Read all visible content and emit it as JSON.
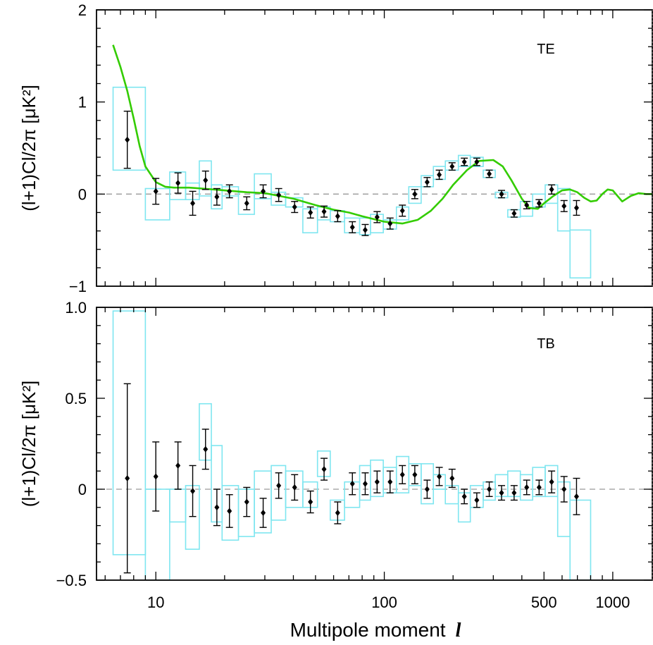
{
  "colors": {
    "model_curve": "#33cc00",
    "box_outline": "#7fe6f0",
    "point": "#000000",
    "zero_line": "#999999",
    "frame": "#000000"
  },
  "x_axis": {
    "label_text": "Multipole moment",
    "label_symbol": "l",
    "scale": "log",
    "range": [
      5.5,
      1500
    ],
    "tick_labels": [
      {
        "value": 10,
        "label": "10"
      },
      {
        "value": 100,
        "label": "100"
      },
      {
        "value": 500,
        "label": "500"
      },
      {
        "value": 1000,
        "label": "1000"
      }
    ]
  },
  "chart_data": [
    {
      "type": "scatter",
      "panel_label": "TE",
      "ylabel": "(l+1)Cl/2π [μK²]",
      "ylim": [
        -1,
        2
      ],
      "y_tick_labels": [
        {
          "value": 2,
          "label": "2"
        },
        {
          "value": 1,
          "label": "1"
        },
        {
          "value": 0,
          "label": "0"
        },
        {
          "value": -1,
          "label": "−1"
        }
      ],
      "zero_line": true,
      "model_curve": {
        "l": [
          6.5,
          7,
          7.5,
          8,
          8.5,
          9,
          10,
          11,
          12,
          14,
          16,
          20,
          25,
          30,
          40,
          50,
          60,
          70,
          80,
          100,
          120,
          140,
          160,
          180,
          200,
          230,
          260,
          300,
          330,
          360,
          400,
          430,
          470,
          500,
          550,
          600,
          650,
          700,
          750,
          800,
          850,
          900,
          950,
          1000,
          1100,
          1200,
          1300,
          1400,
          1500
        ],
        "y": [
          1.62,
          1.38,
          1.12,
          0.82,
          0.52,
          0.3,
          0.13,
          0.08,
          0.07,
          0.07,
          0.06,
          0.04,
          0.02,
          0.01,
          -0.05,
          -0.12,
          -0.17,
          -0.2,
          -0.24,
          -0.3,
          -0.32,
          -0.28,
          -0.18,
          -0.05,
          0.1,
          0.26,
          0.36,
          0.37,
          0.3,
          0.15,
          -0.05,
          -0.15,
          -0.16,
          -0.1,
          -0.02,
          0.04,
          0.05,
          0.02,
          -0.04,
          -0.08,
          -0.07,
          0.0,
          0.05,
          0.04,
          -0.08,
          -0.02,
          0.01,
          0.0,
          0.0
        ]
      },
      "points": [
        {
          "l": 7.5,
          "y": 0.59,
          "err": 0.31,
          "box_lo": 6.5,
          "box_hi": 9.0,
          "box_y0": 0.26,
          "box_y1": 1.16
        },
        {
          "l": 10.0,
          "y": 0.03,
          "err": 0.14,
          "box_lo": 9.0,
          "box_hi": 11.5,
          "box_y0": -0.28,
          "box_y1": 0.06
        },
        {
          "l": 12.5,
          "y": 0.12,
          "err": 0.11,
          "box_lo": 11.5,
          "box_hi": 13.5,
          "box_y0": -0.06,
          "box_y1": 0.24
        },
        {
          "l": 14.5,
          "y": -0.1,
          "err": 0.13,
          "box_lo": 13.5,
          "box_hi": 15.5,
          "box_y0": -0.06,
          "box_y1": 0.12
        },
        {
          "l": 16.5,
          "y": 0.15,
          "err": 0.1,
          "box_lo": 15.5,
          "box_hi": 17.5,
          "box_y0": -0.02,
          "box_y1": 0.36
        },
        {
          "l": 18.5,
          "y": -0.03,
          "err": 0.09,
          "box_lo": 17.5,
          "box_hi": 19.5,
          "box_y0": -0.16,
          "box_y1": 0.1
        },
        {
          "l": 21.0,
          "y": 0.03,
          "err": 0.07,
          "box_lo": 19.5,
          "box_hi": 23.0,
          "box_y0": -0.02,
          "box_y1": 0.08
        },
        {
          "l": 25.0,
          "y": -0.1,
          "err": 0.07,
          "box_lo": 23.0,
          "box_hi": 27.0,
          "box_y0": -0.22,
          "box_y1": 0.02
        },
        {
          "l": 29.5,
          "y": 0.03,
          "err": 0.07,
          "box_lo": 27.0,
          "box_hi": 32.0,
          "box_y0": -0.05,
          "box_y1": 0.22
        },
        {
          "l": 34.5,
          "y": -0.01,
          "err": 0.07,
          "box_lo": 32.0,
          "box_hi": 37.0,
          "box_y0": -0.12,
          "box_y1": 0.02
        },
        {
          "l": 40.5,
          "y": -0.14,
          "err": 0.06,
          "box_lo": 37.0,
          "box_hi": 44.0,
          "box_y0": -0.14,
          "box_y1": -0.04
        },
        {
          "l": 47.5,
          "y": -0.2,
          "err": 0.06,
          "box_lo": 44.0,
          "box_hi": 51.0,
          "box_y0": -0.42,
          "box_y1": -0.16
        },
        {
          "l": 54.5,
          "y": -0.19,
          "err": 0.06,
          "box_lo": 51.0,
          "box_hi": 58.0,
          "box_y0": -0.28,
          "box_y1": -0.14
        },
        {
          "l": 62.5,
          "y": -0.24,
          "err": 0.06,
          "box_lo": 58.0,
          "box_hi": 67.0,
          "box_y0": -0.3,
          "box_y1": -0.18
        },
        {
          "l": 72.5,
          "y": -0.36,
          "err": 0.06,
          "box_lo": 67.0,
          "box_hi": 78.0,
          "box_y0": -0.42,
          "box_y1": -0.26
        },
        {
          "l": 82.5,
          "y": -0.39,
          "err": 0.06,
          "box_lo": 78.0,
          "box_hi": 87.0,
          "box_y0": -0.44,
          "box_y1": -0.26
        },
        {
          "l": 93.0,
          "y": -0.25,
          "err": 0.06,
          "box_lo": 87.0,
          "box_hi": 99.0,
          "box_y0": -0.42,
          "box_y1": -0.22
        },
        {
          "l": 106.0,
          "y": -0.32,
          "err": 0.06,
          "box_lo": 99.0,
          "box_hi": 113.0,
          "box_y0": -0.38,
          "box_y1": -0.28
        },
        {
          "l": 120.0,
          "y": -0.18,
          "err": 0.06,
          "box_lo": 113.0,
          "box_hi": 128.0,
          "box_y0": -0.28,
          "box_y1": -0.14
        },
        {
          "l": 136.0,
          "y": 0.0,
          "err": 0.05,
          "box_lo": 128.0,
          "box_hi": 145.0,
          "box_y0": -0.1,
          "box_y1": 0.08
        },
        {
          "l": 154.0,
          "y": 0.13,
          "err": 0.05,
          "box_lo": 145.0,
          "box_hi": 164.0,
          "box_y0": 0.08,
          "box_y1": 0.2
        },
        {
          "l": 174.0,
          "y": 0.21,
          "err": 0.05,
          "box_lo": 164.0,
          "box_hi": 185.0,
          "box_y0": 0.16,
          "box_y1": 0.3
        },
        {
          "l": 198.0,
          "y": 0.3,
          "err": 0.04,
          "box_lo": 185.0,
          "box_hi": 211.0,
          "box_y0": 0.26,
          "box_y1": 0.36
        },
        {
          "l": 224.0,
          "y": 0.35,
          "err": 0.04,
          "box_lo": 211.0,
          "box_hi": 238.0,
          "box_y0": 0.3,
          "box_y1": 0.42
        },
        {
          "l": 254.0,
          "y": 0.35,
          "err": 0.04,
          "box_lo": 238.0,
          "box_hi": 271.0,
          "box_y0": 0.3,
          "box_y1": 0.4
        },
        {
          "l": 288.0,
          "y": 0.22,
          "err": 0.04,
          "box_lo": 271.0,
          "box_hi": 306.0,
          "box_y0": 0.18,
          "box_y1": 0.26
        },
        {
          "l": 326.0,
          "y": 0.0,
          "err": 0.04,
          "box_lo": 306.0,
          "box_hi": 347.0,
          "box_y0": -0.04,
          "box_y1": 0.02
        },
        {
          "l": 370.0,
          "y": -0.21,
          "err": 0.04,
          "box_lo": 347.0,
          "box_hi": 394.0,
          "box_y0": -0.25,
          "box_y1": -0.17
        },
        {
          "l": 420.0,
          "y": -0.12,
          "err": 0.04,
          "box_lo": 394.0,
          "box_hi": 446.0,
          "box_y0": -0.24,
          "box_y1": -0.08
        },
        {
          "l": 476.0,
          "y": -0.1,
          "err": 0.04,
          "box_lo": 446.0,
          "box_hi": 506.0,
          "box_y0": -0.14,
          "box_y1": 0.0
        },
        {
          "l": 540.0,
          "y": 0.05,
          "err": 0.05,
          "box_lo": 506.0,
          "box_hi": 574.0,
          "box_y0": -0.1,
          "box_y1": 0.1
        },
        {
          "l": 612.0,
          "y": -0.13,
          "err": 0.06,
          "box_lo": 574.0,
          "box_hi": 650.0,
          "box_y0": -0.4,
          "box_y1": 0.06
        },
        {
          "l": 694.0,
          "y": -0.15,
          "err": 0.08,
          "box_lo": 650.0,
          "box_hi": 800.0,
          "box_y0": -0.91,
          "box_y1": -0.39
        }
      ]
    },
    {
      "type": "scatter",
      "panel_label": "TB",
      "ylabel": "(l+1)Cl/2π [μK²]",
      "ylim": [
        -0.5,
        1.0
      ],
      "y_tick_labels": [
        {
          "value": 1.0,
          "label": "1.0"
        },
        {
          "value": 0.5,
          "label": "0.5"
        },
        {
          "value": 0,
          "label": "0"
        },
        {
          "value": -0.5,
          "label": "−0.5"
        }
      ],
      "zero_line": true,
      "points": [
        {
          "l": 7.5,
          "y": 0.06,
          "err": 0.52,
          "box_lo": 6.5,
          "box_hi": 9.0,
          "box_y0": -0.36,
          "box_y1": 0.98
        },
        {
          "l": 10.0,
          "y": 0.07,
          "err": 0.19,
          "box_lo": 9.0,
          "box_hi": 11.5,
          "box_y0": -0.5,
          "box_y1": 0.0
        },
        {
          "l": 12.5,
          "y": 0.13,
          "err": 0.13,
          "box_lo": 11.5,
          "box_hi": 13.5,
          "box_y0": -0.18,
          "box_y1": 0.0
        },
        {
          "l": 14.5,
          "y": -0.01,
          "err": 0.14,
          "box_lo": 13.5,
          "box_hi": 15.5,
          "box_y0": -0.33,
          "box_y1": 0.02
        },
        {
          "l": 16.5,
          "y": 0.22,
          "err": 0.11,
          "box_lo": 15.5,
          "box_hi": 17.5,
          "box_y0": 0.16,
          "box_y1": 0.47
        },
        {
          "l": 18.5,
          "y": -0.1,
          "err": 0.1,
          "box_lo": 17.5,
          "box_hi": 19.5,
          "box_y0": -0.18,
          "box_y1": 0.24
        },
        {
          "l": 21.0,
          "y": -0.12,
          "err": 0.09,
          "box_lo": 19.5,
          "box_hi": 23.0,
          "box_y0": -0.28,
          "box_y1": 0.02
        },
        {
          "l": 25.0,
          "y": -0.07,
          "err": 0.08,
          "box_lo": 23.0,
          "box_hi": 27.0,
          "box_y0": -0.26,
          "box_y1": 0.0
        },
        {
          "l": 29.5,
          "y": -0.13,
          "err": 0.08,
          "box_lo": 27.0,
          "box_hi": 32.0,
          "box_y0": -0.24,
          "box_y1": 0.1
        },
        {
          "l": 34.5,
          "y": 0.02,
          "err": 0.07,
          "box_lo": 32.0,
          "box_hi": 37.0,
          "box_y0": -0.17,
          "box_y1": 0.13
        },
        {
          "l": 40.5,
          "y": 0.01,
          "err": 0.07,
          "box_lo": 37.0,
          "box_hi": 44.0,
          "box_y0": -0.1,
          "box_y1": 0.1
        },
        {
          "l": 47.5,
          "y": -0.07,
          "err": 0.06,
          "box_lo": 44.0,
          "box_hi": 51.0,
          "box_y0": -0.1,
          "box_y1": 0.04
        },
        {
          "l": 54.5,
          "y": 0.11,
          "err": 0.06,
          "box_lo": 51.0,
          "box_hi": 58.0,
          "box_y0": 0.07,
          "box_y1": 0.21
        },
        {
          "l": 62.5,
          "y": -0.13,
          "err": 0.06,
          "box_lo": 58.0,
          "box_hi": 67.0,
          "box_y0": -0.17,
          "box_y1": -0.06
        },
        {
          "l": 72.5,
          "y": 0.03,
          "err": 0.06,
          "box_lo": 67.0,
          "box_hi": 78.0,
          "box_y0": -0.1,
          "box_y1": 0.04
        },
        {
          "l": 82.5,
          "y": 0.03,
          "err": 0.06,
          "box_lo": 78.0,
          "box_hi": 87.0,
          "box_y0": -0.06,
          "box_y1": 0.13
        },
        {
          "l": 93.0,
          "y": 0.04,
          "err": 0.06,
          "box_lo": 87.0,
          "box_hi": 99.0,
          "box_y0": -0.04,
          "box_y1": 0.16
        },
        {
          "l": 106.0,
          "y": 0.04,
          "err": 0.06,
          "box_lo": 99.0,
          "box_hi": 113.0,
          "box_y0": -0.02,
          "box_y1": 0.12
        },
        {
          "l": 120.0,
          "y": 0.08,
          "err": 0.05,
          "box_lo": 113.0,
          "box_hi": 128.0,
          "box_y0": -0.02,
          "box_y1": 0.18
        },
        {
          "l": 136.0,
          "y": 0.08,
          "err": 0.05,
          "box_lo": 128.0,
          "box_hi": 145.0,
          "box_y0": 0.02,
          "box_y1": 0.14
        },
        {
          "l": 154.0,
          "y": 0.0,
          "err": 0.05,
          "box_lo": 145.0,
          "box_hi": 164.0,
          "box_y0": -0.08,
          "box_y1": 0.14
        },
        {
          "l": 174.0,
          "y": 0.07,
          "err": 0.05,
          "box_lo": 164.0,
          "box_hi": 185.0,
          "box_y0": 0.0,
          "box_y1": 0.08
        },
        {
          "l": 198.0,
          "y": 0.06,
          "err": 0.05,
          "box_lo": 185.0,
          "box_hi": 211.0,
          "box_y0": -0.08,
          "box_y1": 0.02
        },
        {
          "l": 224.0,
          "y": -0.04,
          "err": 0.04,
          "box_lo": 211.0,
          "box_hi": 238.0,
          "box_y0": -0.18,
          "box_y1": -0.02
        },
        {
          "l": 254.0,
          "y": -0.06,
          "err": 0.04,
          "box_lo": 238.0,
          "box_hi": 271.0,
          "box_y0": -0.1,
          "box_y1": 0.02
        },
        {
          "l": 288.0,
          "y": 0.0,
          "err": 0.04,
          "box_lo": 271.0,
          "box_hi": 306.0,
          "box_y0": -0.06,
          "box_y1": 0.04
        },
        {
          "l": 326.0,
          "y": -0.02,
          "err": 0.04,
          "box_lo": 306.0,
          "box_hi": 347.0,
          "box_y0": -0.04,
          "box_y1": 0.08
        },
        {
          "l": 370.0,
          "y": -0.02,
          "err": 0.04,
          "box_lo": 347.0,
          "box_hi": 394.0,
          "box_y0": -0.04,
          "box_y1": 0.1
        },
        {
          "l": 420.0,
          "y": 0.01,
          "err": 0.04,
          "box_lo": 394.0,
          "box_hi": 446.0,
          "box_y0": -0.06,
          "box_y1": 0.08
        },
        {
          "l": 476.0,
          "y": 0.01,
          "err": 0.04,
          "box_lo": 446.0,
          "box_hi": 506.0,
          "box_y0": -0.04,
          "box_y1": 0.12
        },
        {
          "l": 540.0,
          "y": 0.04,
          "err": 0.06,
          "box_lo": 506.0,
          "box_hi": 574.0,
          "box_y0": -0.04,
          "box_y1": 0.13
        },
        {
          "l": 612.0,
          "y": 0.0,
          "err": 0.07,
          "box_lo": 574.0,
          "box_hi": 650.0,
          "box_y0": -0.26,
          "box_y1": 0.04
        },
        {
          "l": 694.0,
          "y": -0.04,
          "err": 0.1,
          "box_lo": 650.0,
          "box_hi": 800.0,
          "box_y0": -0.5,
          "box_y1": -0.06
        }
      ]
    }
  ]
}
